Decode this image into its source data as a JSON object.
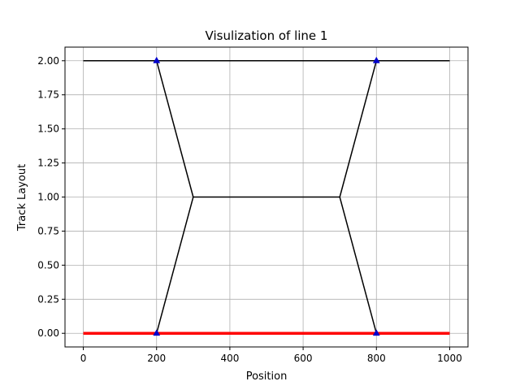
{
  "chart_data": {
    "type": "line",
    "title": "Visulization of line 1",
    "xlabel": "Position",
    "ylabel": "Track Layout",
    "xlim": [
      -50,
      1050
    ],
    "ylim": [
      -0.1,
      2.1
    ],
    "xticks": [
      0,
      200,
      400,
      600,
      800,
      1000
    ],
    "xtick_labels": [
      "0",
      "200",
      "400",
      "600",
      "800",
      "1000"
    ],
    "yticks": [
      0.0,
      0.25,
      0.5,
      0.75,
      1.0,
      1.25,
      1.5,
      1.75,
      2.0
    ],
    "ytick_labels": [
      "0.00",
      "0.25",
      "0.50",
      "0.75",
      "1.00",
      "1.25",
      "1.50",
      "1.75",
      "2.00"
    ],
    "grid": true,
    "series": [
      {
        "color": "#000000",
        "width": 1.5,
        "points": [
          [
            0,
            2
          ],
          [
            1000,
            2
          ]
        ]
      },
      {
        "color": "#000000",
        "width": 1.5,
        "points": [
          [
            200,
            0
          ],
          [
            300,
            1
          ],
          [
            700,
            1
          ],
          [
            800,
            0
          ]
        ]
      },
      {
        "color": "#000000",
        "width": 1.5,
        "points": [
          [
            200,
            2
          ],
          [
            300,
            1
          ]
        ]
      },
      {
        "color": "#000000",
        "width": 1.5,
        "points": [
          [
            700,
            1
          ],
          [
            800,
            2
          ]
        ]
      },
      {
        "color": "#ff0000",
        "width": 3.5,
        "points": [
          [
            0,
            0
          ],
          [
            1000,
            0
          ]
        ]
      }
    ],
    "markers": {
      "shape": "triangle-up",
      "color": "#0000cc",
      "points": [
        [
          200,
          2
        ],
        [
          800,
          2
        ],
        [
          200,
          0
        ],
        [
          800,
          0
        ]
      ]
    }
  }
}
